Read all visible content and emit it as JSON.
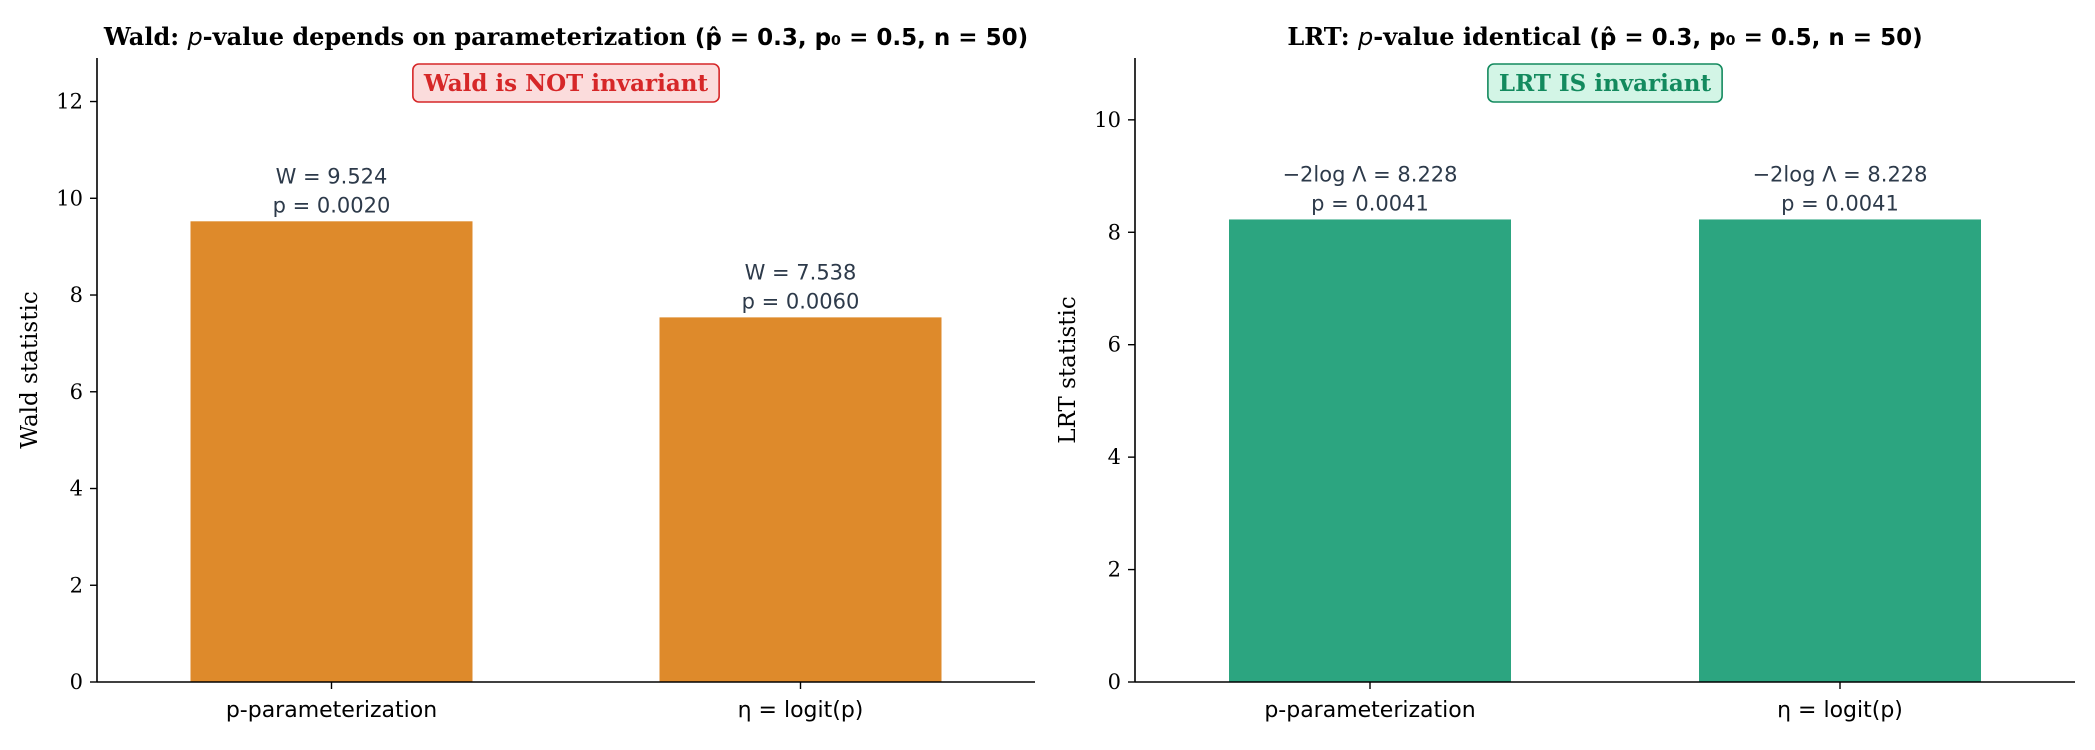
{
  "chart_data": [
    {
      "type": "bar",
      "title_prefix": "Wald: ",
      "title_italic": "p",
      "title_main": "-value depends on parameterization",
      "title_params": "(p̂ = 0.3, p₀ = 0.5, n = 50)",
      "ylabel": "Wald statistic",
      "ylim": [
        0,
        12.9
      ],
      "yticks": [
        0,
        2,
        4,
        6,
        8,
        10,
        12
      ],
      "categories": [
        "p-parameterization",
        "η = logit(p)"
      ],
      "values": [
        9.524,
        7.538
      ],
      "bar_labels": [
        [
          "W = 9.524",
          "p = 0.0020"
        ],
        [
          "W = 7.538",
          "p = 0.0060"
        ]
      ],
      "bar_color": "#de8a2b",
      "badge": {
        "text": "Wald is NOT invariant",
        "text_color": "#d62728",
        "fill": "#fbdcdc",
        "border": "#d62728"
      }
    },
    {
      "type": "bar",
      "title_prefix": "LRT: ",
      "title_italic": "p",
      "title_main": "-value identical",
      "title_params": "(p̂ = 0.3, p₀ = 0.5, n = 50)",
      "ylabel": "LRT statistic",
      "ylim": [
        0,
        11.1
      ],
      "yticks": [
        0,
        2,
        4,
        6,
        8,
        10
      ],
      "categories": [
        "p-parameterization",
        "η = logit(p)"
      ],
      "values": [
        8.228,
        8.228
      ],
      "bar_labels": [
        [
          "−2log Λ = 8.228",
          "p = 0.0041"
        ],
        [
          "−2log Λ = 8.228",
          "p = 0.0041"
        ]
      ],
      "bar_color": "#2ca580",
      "badge": {
        "text": "LRT IS invariant",
        "text_color": "#138a5e",
        "fill": "#d3f5e6",
        "border": "#138a5e"
      }
    }
  ]
}
